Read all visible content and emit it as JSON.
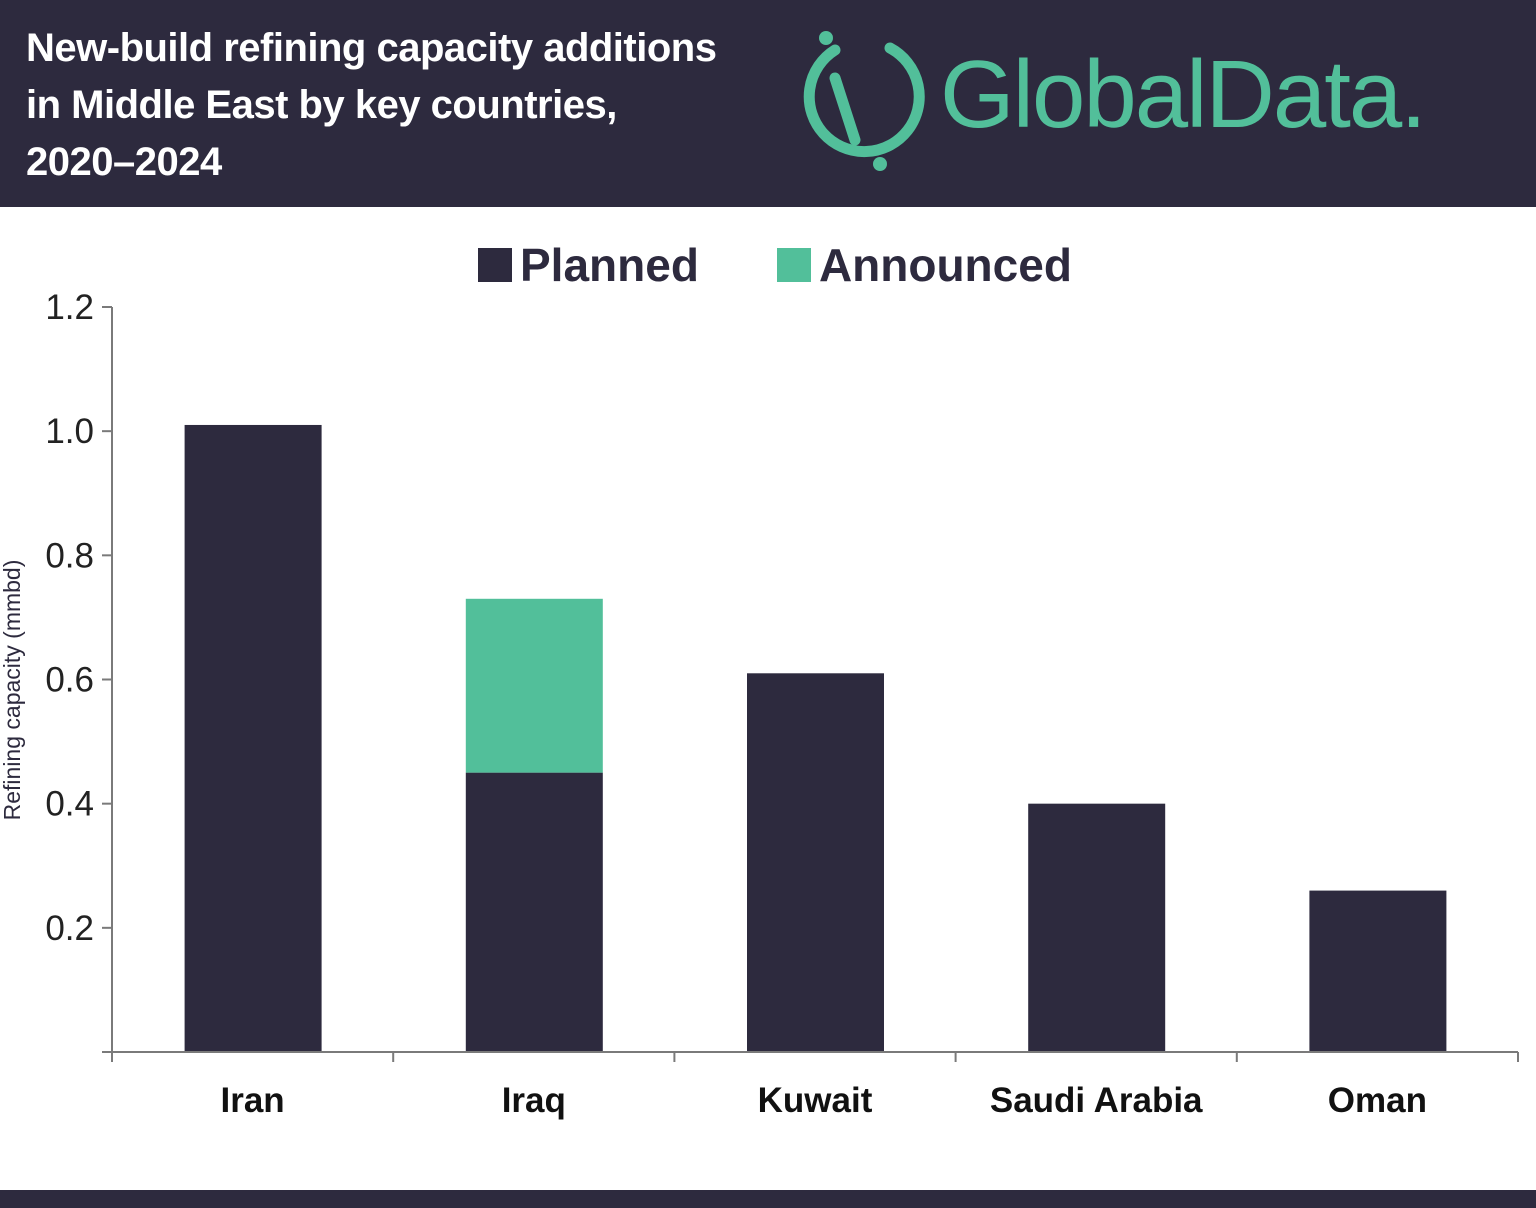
{
  "header": {
    "title_lines": [
      "New-build refining capacity additions",
      "in Middle East by key countries,",
      "2020–2024"
    ],
    "logo_text": "GlobalData."
  },
  "colors": {
    "planned": "#2d2a3e",
    "announced": "#52bf9a",
    "header_bg": "#2d2a3e"
  },
  "chart_data": {
    "type": "bar",
    "stacked": true,
    "title": "New-build refining capacity additions in Middle East by key countries, 2020–2024",
    "xlabel": "",
    "ylabel": "Refining capacity (mmbd)",
    "ylim": [
      0,
      1.2
    ],
    "yticks": [
      "0.2",
      "0.4",
      "0.6",
      "0.8",
      "1.0",
      "1.2"
    ],
    "categories": [
      "Iran",
      "Iraq",
      "Kuwait",
      "Saudi Arabia",
      "Oman"
    ],
    "series": [
      {
        "name": "Planned",
        "values": [
          1.01,
          0.45,
          0.61,
          0.4,
          0.26
        ]
      },
      {
        "name": "Announced",
        "values": [
          0,
          0.28,
          0,
          0,
          0
        ]
      }
    ],
    "legend": "top",
    "grid": false
  }
}
